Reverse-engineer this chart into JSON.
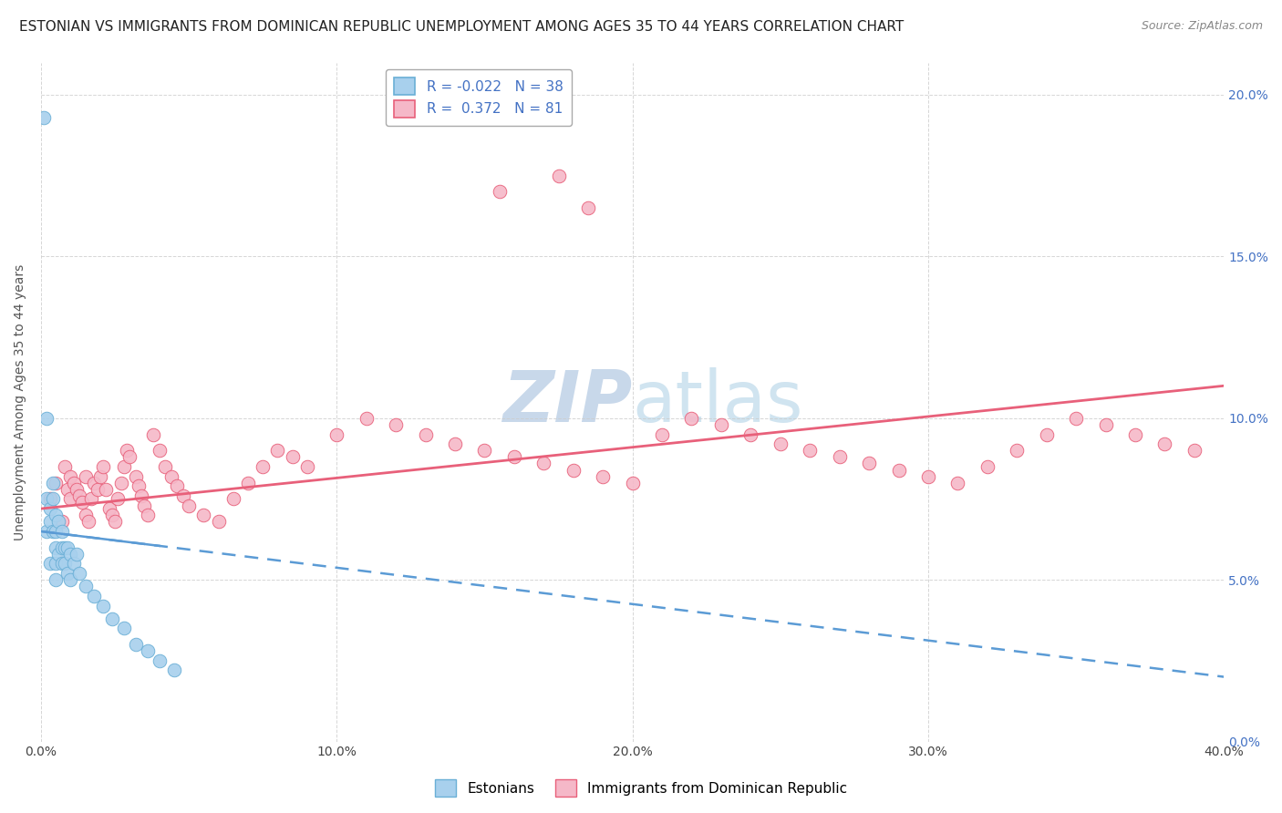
{
  "title": "ESTONIAN VS IMMIGRANTS FROM DOMINICAN REPUBLIC UNEMPLOYMENT AMONG AGES 35 TO 44 YEARS CORRELATION CHART",
  "source": "Source: ZipAtlas.com",
  "ylabel": "Unemployment Among Ages 35 to 44 years",
  "xlabel_ticks": [
    "0.0%",
    "10.0%",
    "20.0%",
    "30.0%",
    "40.0%"
  ],
  "ylabel_ticks": [
    "0.0%",
    "5.0%",
    "10.0%",
    "15.0%",
    "20.0%"
  ],
  "xlim": [
    0.0,
    0.4
  ],
  "ylim": [
    0.0,
    0.21
  ],
  "blue_R": -0.022,
  "blue_N": 38,
  "pink_R": 0.372,
  "pink_N": 81,
  "blue_color": "#A8D0ED",
  "pink_color": "#F5B8C8",
  "blue_edge_color": "#6AAFD6",
  "pink_edge_color": "#E8607A",
  "blue_line_color": "#5B9BD5",
  "pink_line_color": "#E8607A",
  "legend_blue_label": "R = -0.022   N = 38",
  "legend_pink_label": "R =  0.372   N = 81",
  "background_color": "#FFFFFF",
  "grid_color": "#CCCCCC",
  "title_fontsize": 11,
  "label_fontsize": 10,
  "tick_fontsize": 10,
  "watermark_color": "#C8D8EA",
  "watermark_fontsize": 56,
  "blue_x": [
    0.001,
    0.002,
    0.002,
    0.003,
    0.003,
    0.003,
    0.004,
    0.004,
    0.004,
    0.005,
    0.005,
    0.005,
    0.005,
    0.005,
    0.006,
    0.006,
    0.007,
    0.007,
    0.007,
    0.008,
    0.008,
    0.009,
    0.009,
    0.01,
    0.01,
    0.011,
    0.012,
    0.013,
    0.015,
    0.018,
    0.021,
    0.024,
    0.028,
    0.032,
    0.036,
    0.04,
    0.045,
    0.002
  ],
  "blue_y": [
    0.193,
    0.075,
    0.065,
    0.072,
    0.068,
    0.055,
    0.08,
    0.075,
    0.065,
    0.07,
    0.065,
    0.06,
    0.055,
    0.05,
    0.068,
    0.058,
    0.065,
    0.06,
    0.055,
    0.06,
    0.055,
    0.06,
    0.052,
    0.058,
    0.05,
    0.055,
    0.058,
    0.052,
    0.048,
    0.045,
    0.042,
    0.038,
    0.035,
    0.03,
    0.028,
    0.025,
    0.022,
    0.1
  ],
  "pink_x": [
    0.003,
    0.005,
    0.007,
    0.008,
    0.009,
    0.01,
    0.01,
    0.011,
    0.012,
    0.013,
    0.014,
    0.015,
    0.015,
    0.016,
    0.017,
    0.018,
    0.019,
    0.02,
    0.021,
    0.022,
    0.023,
    0.024,
    0.025,
    0.026,
    0.027,
    0.028,
    0.029,
    0.03,
    0.032,
    0.033,
    0.034,
    0.035,
    0.036,
    0.038,
    0.04,
    0.042,
    0.044,
    0.046,
    0.048,
    0.05,
    0.055,
    0.06,
    0.065,
    0.07,
    0.075,
    0.08,
    0.085,
    0.09,
    0.1,
    0.11,
    0.12,
    0.13,
    0.14,
    0.15,
    0.16,
    0.17,
    0.18,
    0.19,
    0.2,
    0.21,
    0.22,
    0.23,
    0.24,
    0.25,
    0.26,
    0.27,
    0.28,
    0.29,
    0.3,
    0.31,
    0.32,
    0.33,
    0.34,
    0.35,
    0.36,
    0.37,
    0.38,
    0.39,
    0.155,
    0.175,
    0.185
  ],
  "pink_y": [
    0.075,
    0.08,
    0.068,
    0.085,
    0.078,
    0.082,
    0.075,
    0.08,
    0.078,
    0.076,
    0.074,
    0.082,
    0.07,
    0.068,
    0.075,
    0.08,
    0.078,
    0.082,
    0.085,
    0.078,
    0.072,
    0.07,
    0.068,
    0.075,
    0.08,
    0.085,
    0.09,
    0.088,
    0.082,
    0.079,
    0.076,
    0.073,
    0.07,
    0.095,
    0.09,
    0.085,
    0.082,
    0.079,
    0.076,
    0.073,
    0.07,
    0.068,
    0.075,
    0.08,
    0.085,
    0.09,
    0.088,
    0.085,
    0.095,
    0.1,
    0.098,
    0.095,
    0.092,
    0.09,
    0.088,
    0.086,
    0.084,
    0.082,
    0.08,
    0.095,
    0.1,
    0.098,
    0.095,
    0.092,
    0.09,
    0.088,
    0.086,
    0.084,
    0.082,
    0.08,
    0.085,
    0.09,
    0.095,
    0.1,
    0.098,
    0.095,
    0.092,
    0.09,
    0.17,
    0.175,
    0.165
  ]
}
